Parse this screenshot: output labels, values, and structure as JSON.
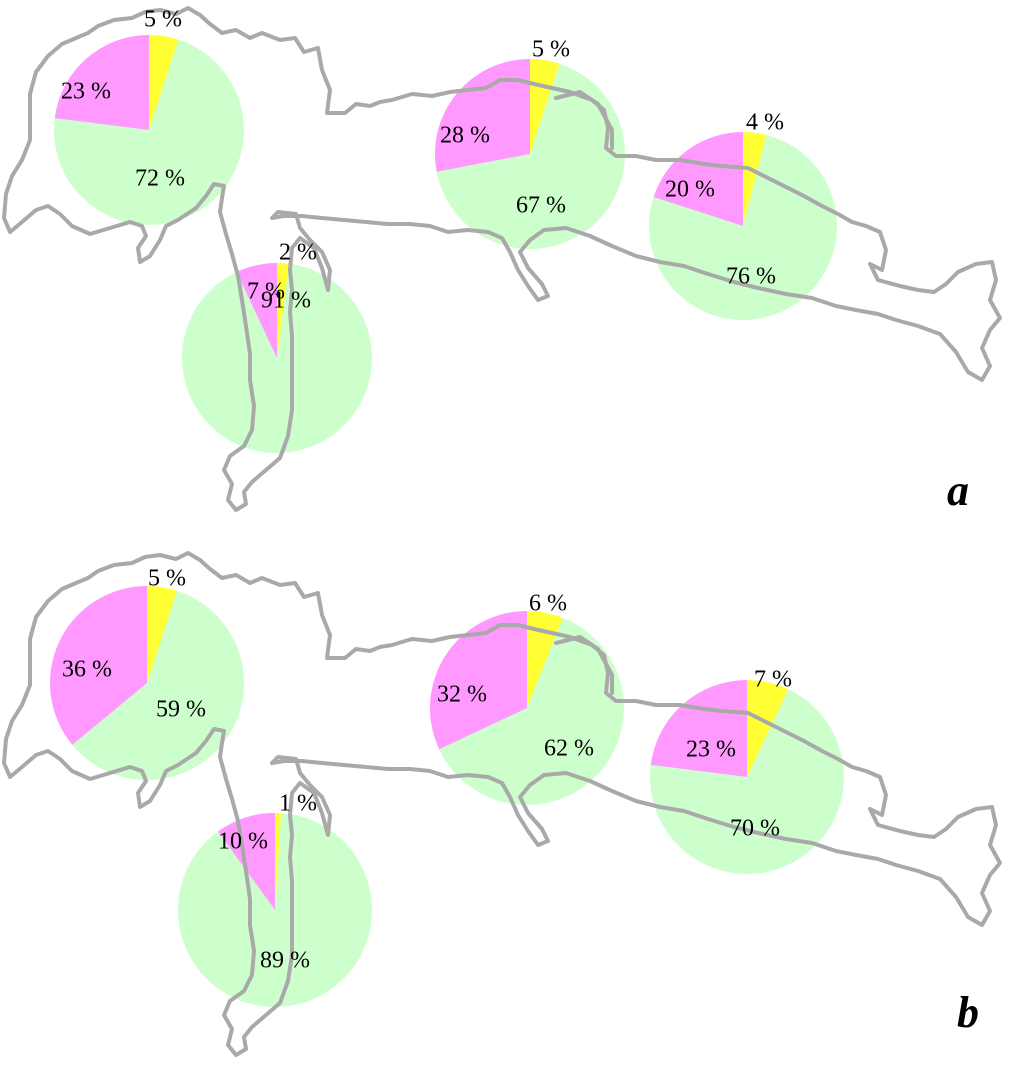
{
  "colors": {
    "green": "#ccffcc",
    "magenta": "#ff99ff",
    "yellow": "#ffff33",
    "coastline": "#a9a9a9"
  },
  "chart_data": [
    {
      "type": "pie",
      "panel": "a",
      "pies": [
        {
          "values": [
            72,
            23,
            5
          ],
          "labels": [
            "72 %",
            "23 %",
            "5 %"
          ]
        },
        {
          "values": [
            91,
            7,
            2
          ],
          "labels": [
            "91 %",
            "7 %",
            "2 %"
          ]
        },
        {
          "values": [
            67,
            28,
            5
          ],
          "labels": [
            "67 %",
            "28 %",
            "5 %"
          ]
        },
        {
          "values": [
            76,
            20,
            4
          ],
          "labels": [
            "76 %",
            "20 %",
            "4 %"
          ]
        }
      ]
    },
    {
      "type": "pie",
      "panel": "b",
      "pies": [
        {
          "values": [
            59,
            36,
            5
          ],
          "labels": [
            "59 %",
            "36 %",
            "5 %"
          ]
        },
        {
          "values": [
            89,
            10,
            1
          ],
          "labels": [
            "89 %",
            "10 %",
            "1 %"
          ]
        },
        {
          "values": [
            62,
            32,
            6
          ],
          "labels": [
            "62 %",
            "32 %",
            "6 %"
          ]
        },
        {
          "values": [
            70,
            23,
            7
          ],
          "labels": [
            "70 %",
            "23 %",
            "7 %"
          ]
        }
      ]
    }
  ]
}
